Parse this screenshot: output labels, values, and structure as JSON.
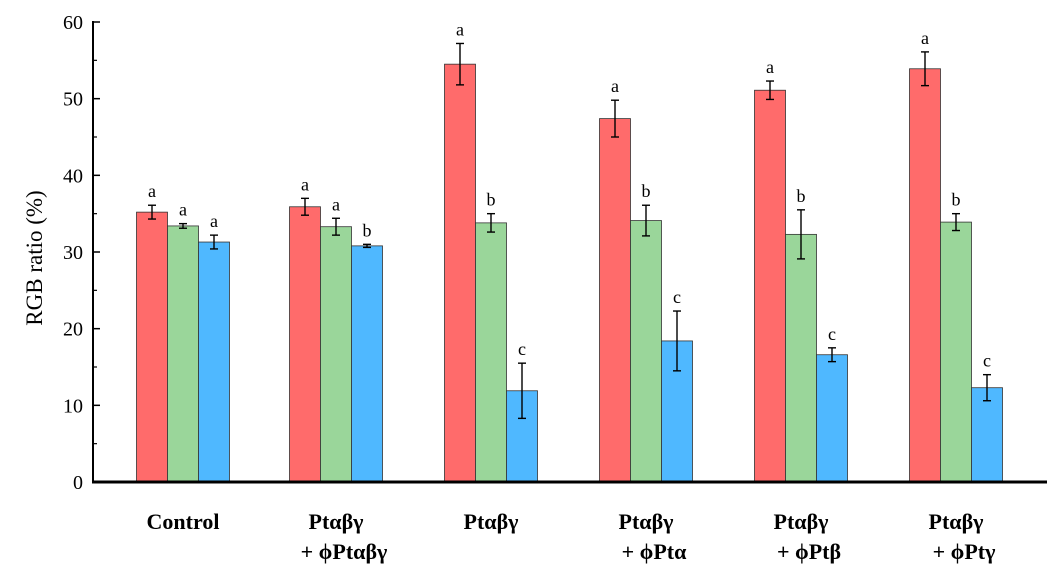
{
  "chart_data": {
    "type": "bar",
    "ylabel": "RGB ratio (%)",
    "xlabel": "",
    "ylim": [
      0,
      60
    ],
    "yticks": [
      0,
      10,
      20,
      30,
      40,
      50,
      60
    ],
    "grid": false,
    "categories": [
      [
        "Control"
      ],
      [
        "Ptαβγ",
        "+ ϕPtαβγ"
      ],
      [
        "Ptαβγ"
      ],
      [
        "Ptαβγ",
        "+ ϕPtα"
      ],
      [
        "Ptαβγ",
        "+ ϕPtβ"
      ],
      [
        "Ptαβγ",
        "+ ϕPtγ"
      ]
    ],
    "series": [
      {
        "color": "#ff6b6b",
        "values": [
          35.2,
          35.9,
          54.5,
          47.4,
          51.1,
          53.9
        ],
        "errors": [
          0.9,
          1.1,
          2.7,
          2.4,
          1.2,
          2.2
        ],
        "letters": [
          "a",
          "a",
          "a",
          "a",
          "a",
          "a"
        ]
      },
      {
        "color": "#9ad69a",
        "values": [
          33.4,
          33.3,
          33.8,
          34.1,
          32.3,
          33.9
        ],
        "errors": [
          0.3,
          1.1,
          1.2,
          2.0,
          3.2,
          1.1
        ],
        "letters": [
          "a",
          "a",
          "b",
          "b",
          "b",
          "b"
        ]
      },
      {
        "color": "#4fb8ff",
        "values": [
          31.3,
          30.8,
          11.9,
          18.4,
          16.6,
          12.3
        ],
        "errors": [
          0.9,
          0.2,
          3.6,
          3.9,
          0.9,
          1.7
        ],
        "letters": [
          "a",
          "b",
          "c",
          "c",
          "c",
          "c"
        ]
      }
    ]
  }
}
